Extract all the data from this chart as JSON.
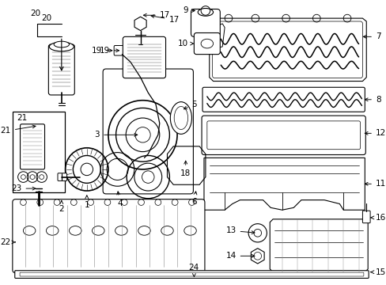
{
  "bg_color": "#ffffff",
  "line_color": "#000000",
  "figsize": [
    4.89,
    3.6
  ],
  "dpi": 100,
  "parts": {
    "label_fontsize": 7.5,
    "arrow_lw": 0.7,
    "part_lw": 0.8
  }
}
